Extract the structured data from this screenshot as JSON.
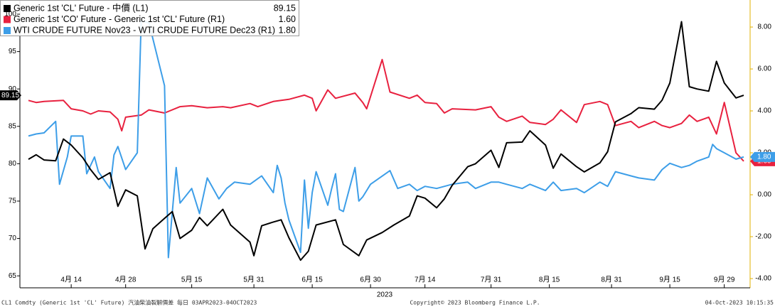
{
  "chart_data": {
    "type": "line",
    "x_label": "2023",
    "footer_left": "CL1 Comdty (Generic 1st 'CL' Future) 汽油柴油裂解價差  每日 03APR2023-04OCT2023",
    "footer_center": "Copyright© 2023 Bloomberg Finance L.P.",
    "footer_right": "04-Oct-2023 10:15:35",
    "xlim": [
      "2023-04-03",
      "2023-10-04"
    ],
    "xticks": [
      {
        "value": "2023-04-14",
        "label": "4月 14"
      },
      {
        "value": "2023-04-28",
        "label": "4月 28"
      },
      {
        "value": "2023-05-15",
        "label": "5月 15"
      },
      {
        "value": "2023-05-31",
        "label": "5月 31"
      },
      {
        "value": "2023-06-15",
        "label": "6月 15"
      },
      {
        "value": "2023-06-30",
        "label": "6月 30"
      },
      {
        "value": "2023-07-14",
        "label": "7月 14"
      },
      {
        "value": "2023-07-31",
        "label": "7月 31"
      },
      {
        "value": "2023-08-15",
        "label": "8月 15"
      },
      {
        "value": "2023-08-31",
        "label": "8月 31"
      },
      {
        "value": "2023-09-15",
        "label": "9月 15"
      },
      {
        "value": "2023-09-29",
        "label": "9月 29"
      }
    ],
    "ylim": [
      63.4,
      101.9
    ],
    "yticks": [
      65,
      70,
      75,
      80,
      85,
      90,
      95,
      100
    ],
    "y2lim": [
      -4.44,
      9.29
    ],
    "y2ticks": [
      {
        "value": -4,
        "label": "-4.00"
      },
      {
        "value": -2,
        "label": "-2.00"
      },
      {
        "value": 0,
        "label": "0.00"
      },
      {
        "value": 2,
        "label": "2.00"
      },
      {
        "value": 4,
        "label": "4.00"
      },
      {
        "value": 6,
        "label": "6.00"
      },
      {
        "value": 8,
        "label": "8.00"
      }
    ],
    "grid": false,
    "legend": "top-left",
    "series": [
      {
        "name": "Generic 1st 'CL' Future - 中價 (L1)",
        "color": "#000000",
        "axis": "y",
        "last_label": "89.15",
        "x": [
          "2023-04-03",
          "2023-04-05",
          "2023-04-07",
          "2023-04-10",
          "2023-04-12",
          "2023-04-14",
          "2023-04-17",
          "2023-04-19",
          "2023-04-21",
          "2023-04-24",
          "2023-04-26",
          "2023-04-28",
          "2023-05-01",
          "2023-05-03",
          "2023-05-05",
          "2023-05-08",
          "2023-05-10",
          "2023-05-12",
          "2023-05-15",
          "2023-05-17",
          "2023-05-19",
          "2023-05-23",
          "2023-05-25",
          "2023-05-30",
          "2023-05-31",
          "2023-06-02",
          "2023-06-05",
          "2023-06-07",
          "2023-06-09",
          "2023-06-12",
          "2023-06-14",
          "2023-06-16",
          "2023-06-21",
          "2023-06-23",
          "2023-06-27",
          "2023-06-29",
          "2023-07-03",
          "2023-07-06",
          "2023-07-10",
          "2023-07-12",
          "2023-07-14",
          "2023-07-17",
          "2023-07-19",
          "2023-07-21",
          "2023-07-25",
          "2023-07-27",
          "2023-07-31",
          "2023-08-02",
          "2023-08-04",
          "2023-08-08",
          "2023-08-10",
          "2023-08-14",
          "2023-08-16",
          "2023-08-18",
          "2023-08-22",
          "2023-08-24",
          "2023-08-28",
          "2023-08-30",
          "2023-09-01",
          "2023-09-05",
          "2023-09-07",
          "2023-09-11",
          "2023-09-13",
          "2023-09-15",
          "2023-09-18",
          "2023-09-20",
          "2023-09-22",
          "2023-09-25",
          "2023-09-27",
          "2023-09-29",
          "2023-10-02",
          "2023-10-04"
        ],
        "values": [
          80.6,
          81.2,
          80.5,
          80.4,
          83.3,
          82.5,
          80.8,
          79.2,
          77.9,
          78.8,
          74.3,
          76.5,
          75.7,
          68.6,
          71.3,
          72.7,
          73.6,
          70.0,
          71.1,
          72.8,
          71.7,
          73.9,
          71.8,
          69.5,
          67.7,
          71.7,
          72.2,
          72.5,
          70.1,
          67.1,
          68.3,
          71.8,
          72.5,
          69.2,
          67.7,
          69.8,
          70.8,
          71.8,
          73.0,
          75.7,
          75.4,
          74.1,
          75.3,
          77.1,
          79.6,
          80.0,
          81.8,
          79.5,
          82.8,
          82.9,
          84.4,
          82.5,
          79.4,
          81.3,
          79.6,
          78.9,
          80.1,
          81.6,
          85.6,
          86.7,
          87.5,
          87.3,
          88.5,
          90.8,
          99.0,
          90.3,
          90.0,
          89.7,
          93.7,
          90.8,
          88.8,
          89.15
        ]
      },
      {
        "name": "Generic 1st 'CO' Future - Generic 1st 'CL' Future (R1)",
        "color": "#e8213f",
        "axis": "y2",
        "last_label": "1.60",
        "x": [
          "2023-04-03",
          "2023-04-05",
          "2023-04-07",
          "2023-04-12",
          "2023-04-14",
          "2023-04-17",
          "2023-04-19",
          "2023-04-21",
          "2023-04-24",
          "2023-04-26",
          "2023-04-27",
          "2023-04-28",
          "2023-05-02",
          "2023-05-04",
          "2023-05-08",
          "2023-05-12",
          "2023-05-15",
          "2023-05-19",
          "2023-05-23",
          "2023-05-25",
          "2023-05-30",
          "2023-06-01",
          "2023-06-05",
          "2023-06-09",
          "2023-06-13",
          "2023-06-15",
          "2023-06-16",
          "2023-06-19",
          "2023-06-21",
          "2023-06-26",
          "2023-06-28",
          "2023-06-29",
          "2023-07-03",
          "2023-07-05",
          "2023-07-10",
          "2023-07-12",
          "2023-07-14",
          "2023-07-17",
          "2023-07-19",
          "2023-07-21",
          "2023-07-27",
          "2023-07-31",
          "2023-08-02",
          "2023-08-04",
          "2023-08-08",
          "2023-08-10",
          "2023-08-14",
          "2023-08-16",
          "2023-08-18",
          "2023-08-22",
          "2023-08-24",
          "2023-08-28",
          "2023-08-30",
          "2023-09-01",
          "2023-09-05",
          "2023-09-07",
          "2023-09-11",
          "2023-09-13",
          "2023-09-15",
          "2023-09-18",
          "2023-09-20",
          "2023-09-22",
          "2023-09-25",
          "2023-09-27",
          "2023-09-29",
          "2023-10-02",
          "2023-10-04"
        ],
        "values": [
          4.5,
          4.4,
          4.45,
          4.5,
          4.1,
          4.0,
          3.85,
          4.0,
          3.95,
          3.6,
          3.05,
          3.7,
          3.8,
          4.05,
          3.9,
          4.2,
          4.25,
          4.15,
          4.2,
          4.15,
          4.35,
          4.2,
          4.45,
          4.55,
          4.75,
          4.6,
          4.0,
          5.0,
          4.6,
          4.85,
          4.4,
          4.1,
          6.45,
          4.9,
          4.6,
          4.75,
          4.4,
          4.35,
          3.9,
          4.1,
          4.05,
          4.2,
          3.7,
          3.5,
          3.75,
          3.45,
          3.35,
          3.6,
          4.05,
          3.45,
          4.3,
          4.45,
          4.3,
          3.3,
          3.5,
          3.2,
          3.5,
          3.3,
          3.2,
          3.4,
          3.8,
          3.5,
          3.7,
          2.9,
          4.4,
          2.0,
          1.6
        ]
      },
      {
        "name": "WTI CRUDE FUTURE Nov23 - WTI CRUDE FUTURE Dec23 (R1)",
        "color": "#3d9ee8",
        "axis": "y2",
        "last_label": "1.80",
        "x": [
          "2023-04-03",
          "2023-04-05",
          "2023-04-07",
          "2023-04-10",
          "2023-04-11",
          "2023-04-13",
          "2023-04-14",
          "2023-04-17",
          "2023-04-18",
          "2023-04-20",
          "2023-04-21",
          "2023-04-24",
          "2023-04-25",
          "2023-04-26",
          "2023-04-28",
          "2023-05-01",
          "2023-05-02",
          "2023-05-04",
          "2023-05-08",
          "2023-05-09",
          "2023-05-11",
          "2023-05-12",
          "2023-05-15",
          "2023-05-17",
          "2023-05-19",
          "2023-05-22",
          "2023-05-24",
          "2023-05-26",
          "2023-05-30",
          "2023-06-02",
          "2023-06-05",
          "2023-06-06",
          "2023-06-07",
          "2023-06-08",
          "2023-06-09",
          "2023-06-12",
          "2023-06-13",
          "2023-06-14",
          "2023-06-15",
          "2023-06-16",
          "2023-06-19",
          "2023-06-20",
          "2023-06-21",
          "2023-06-22",
          "2023-06-23",
          "2023-06-26",
          "2023-06-27",
          "2023-06-28",
          "2023-06-29",
          "2023-06-30",
          "2023-07-05",
          "2023-07-07",
          "2023-07-10",
          "2023-07-12",
          "2023-07-14",
          "2023-07-17",
          "2023-07-21",
          "2023-07-25",
          "2023-07-27",
          "2023-07-31",
          "2023-08-02",
          "2023-08-04",
          "2023-08-08",
          "2023-08-10",
          "2023-08-14",
          "2023-08-16",
          "2023-08-18",
          "2023-08-22",
          "2023-08-24",
          "2023-08-28",
          "2023-08-30",
          "2023-09-01",
          "2023-09-05",
          "2023-09-07",
          "2023-09-11",
          "2023-09-13",
          "2023-09-15",
          "2023-09-18",
          "2023-09-20",
          "2023-09-22",
          "2023-09-25",
          "2023-09-26",
          "2023-09-27",
          "2023-09-29",
          "2023-10-02",
          "2023-10-04"
        ],
        "values": [
          2.8,
          2.9,
          2.95,
          3.5,
          0.5,
          1.8,
          2.8,
          2.8,
          1.0,
          1.8,
          1.1,
          0.3,
          1.9,
          2.3,
          1.2,
          2.0,
          8.3,
          8.2,
          5.2,
          -3.0,
          1.3,
          -0.4,
          0.3,
          -0.9,
          0.8,
          -0.2,
          0.3,
          0.6,
          0.5,
          0.9,
          0.1,
          1.4,
          0.8,
          -0.4,
          -1.2,
          -2.75,
          0.7,
          -1.6,
          0.1,
          1.1,
          -0.5,
          0.3,
          1.0,
          -0.7,
          -0.8,
          1.3,
          -0.3,
          -0.1,
          0.2,
          0.5,
          1.15,
          0.3,
          0.5,
          0.2,
          0.4,
          0.3,
          0.5,
          0.6,
          0.3,
          0.6,
          0.6,
          0.5,
          0.3,
          0.5,
          0.2,
          0.6,
          0.2,
          0.3,
          0.1,
          0.6,
          0.4,
          1.1,
          0.9,
          0.8,
          0.7,
          1.2,
          1.5,
          1.3,
          1.4,
          1.6,
          1.8,
          2.4,
          2.2,
          2.0,
          1.7,
          1.8
        ]
      }
    ]
  }
}
